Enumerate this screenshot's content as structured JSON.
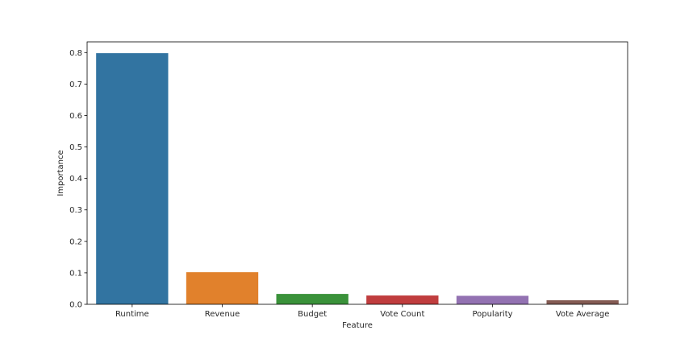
{
  "chart_data": {
    "type": "bar",
    "title": "",
    "xlabel": "Feature",
    "ylabel": "Importance",
    "categories": [
      "Runtime",
      "Revenue",
      "Budget",
      "Vote Count",
      "Popularity",
      "Vote Average"
    ],
    "values": [
      0.798,
      0.102,
      0.033,
      0.028,
      0.027,
      0.013
    ],
    "colors": [
      "#3274a1",
      "#e1812c",
      "#3a923a",
      "#c03d3e",
      "#9372b2",
      "#845b53"
    ],
    "ylim": [
      0,
      0.834
    ],
    "yticks": [
      0.0,
      0.1,
      0.2,
      0.3,
      0.4,
      0.5,
      0.6,
      0.7,
      0.8
    ],
    "ytick_labels": [
      "0.0",
      "0.1",
      "0.2",
      "0.3",
      "0.4",
      "0.5",
      "0.6",
      "0.7",
      "0.8"
    ],
    "grid": false,
    "legend": "none"
  }
}
